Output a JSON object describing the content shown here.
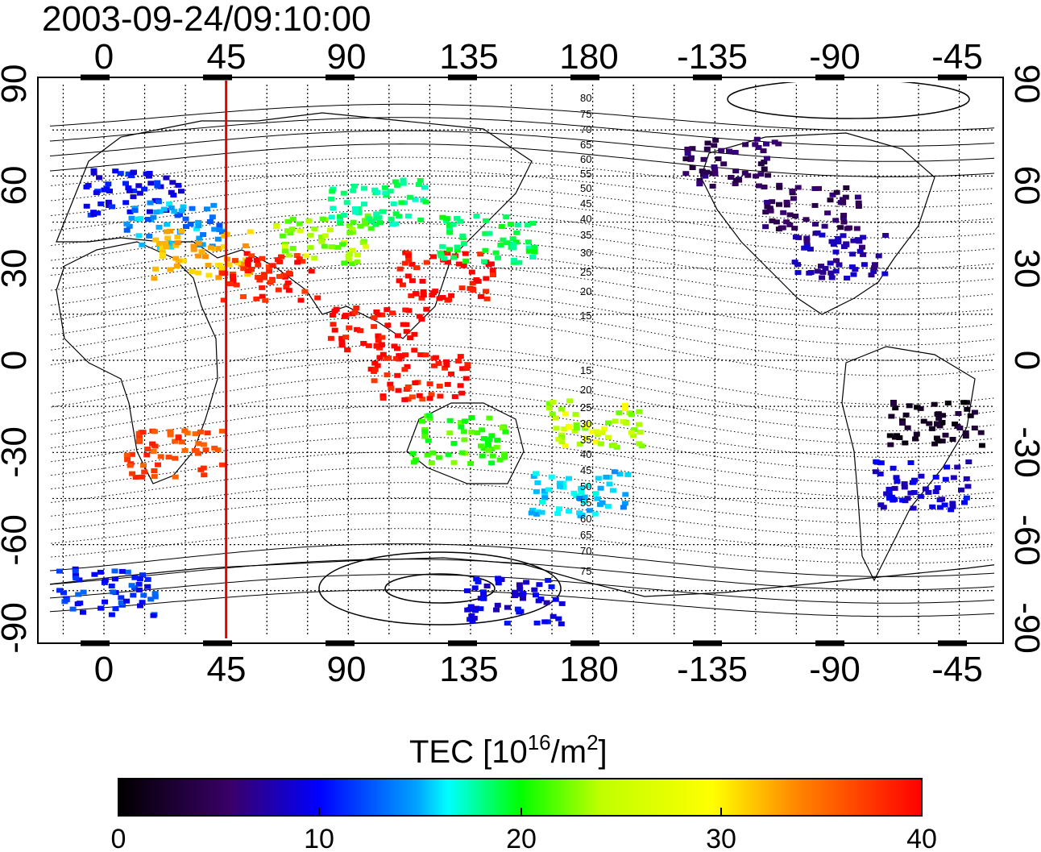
{
  "map": {
    "timestamp": "2003-09-24/09:10:00",
    "lon_ticks": [
      "0",
      "45",
      "90",
      "135",
      "180",
      "-135",
      "-90",
      "-45"
    ],
    "lat_ticks": [
      "90",
      "60",
      "30",
      "0",
      "-30",
      "-60",
      "-90"
    ],
    "contour_labels_north": [
      "80",
      "75",
      "70",
      "65",
      "60",
      "55",
      "50",
      "45",
      "40",
      "35",
      "30",
      "25",
      "20",
      "15"
    ],
    "contour_labels_south": [
      "15",
      "20",
      "25",
      "30",
      "35",
      "40",
      "45",
      "50",
      "55",
      "60",
      "65",
      "70",
      "75"
    ],
    "marker_line": {
      "longitude": 45,
      "color": "#e60000"
    },
    "colorbar": {
      "title": "TEC  [10",
      "title_sup1": "16",
      "title_mid": "/m",
      "title_sup2": "2",
      "title_end": "]",
      "ticks": [
        "0",
        "10",
        "20",
        "30",
        "40"
      ],
      "min": 0,
      "max": 40,
      "colors": [
        "#000000",
        "#3a0068",
        "#0000ff",
        "#00ffff",
        "#00ff00",
        "#ffff00",
        "#ff8000",
        "#ff0000"
      ]
    },
    "tec_regions": [
      {
        "lon": 10,
        "lat": 55,
        "tec": 11
      },
      {
        "lon": 25,
        "lat": 45,
        "tec": 15
      },
      {
        "lon": 35,
        "lat": 35,
        "tec": 32
      },
      {
        "lon": 80,
        "lat": 40,
        "tec": 26
      },
      {
        "lon": 100,
        "lat": 52,
        "tec": 20
      },
      {
        "lon": 125,
        "lat": 28,
        "tec": 40
      },
      {
        "lon": 140,
        "lat": 40,
        "tec": 21
      },
      {
        "lon": 60,
        "lat": 28,
        "tec": 39
      },
      {
        "lon": 100,
        "lat": 10,
        "tec": 40
      },
      {
        "lon": 115,
        "lat": -5,
        "tec": 39
      },
      {
        "lon": 25,
        "lat": -30,
        "tec": 37
      },
      {
        "lon": 130,
        "lat": -25,
        "tec": 24
      },
      {
        "lon": 174,
        "lat": -42,
        "tec": 16
      },
      {
        "lon": 180,
        "lat": -20,
        "tec": 27
      },
      {
        "lon": -100,
        "lat": 50,
        "tec": 5
      },
      {
        "lon": -90,
        "lat": 35,
        "tec": 8
      },
      {
        "lon": -55,
        "lat": -20,
        "tec": 2
      },
      {
        "lon": -60,
        "lat": -40,
        "tec": 10
      },
      {
        "lon": -130,
        "lat": 65,
        "tec": 5
      },
      {
        "lon": 0,
        "lat": -75,
        "tec": 12
      },
      {
        "lon": 150,
        "lat": -78,
        "tec": 10
      }
    ]
  }
}
